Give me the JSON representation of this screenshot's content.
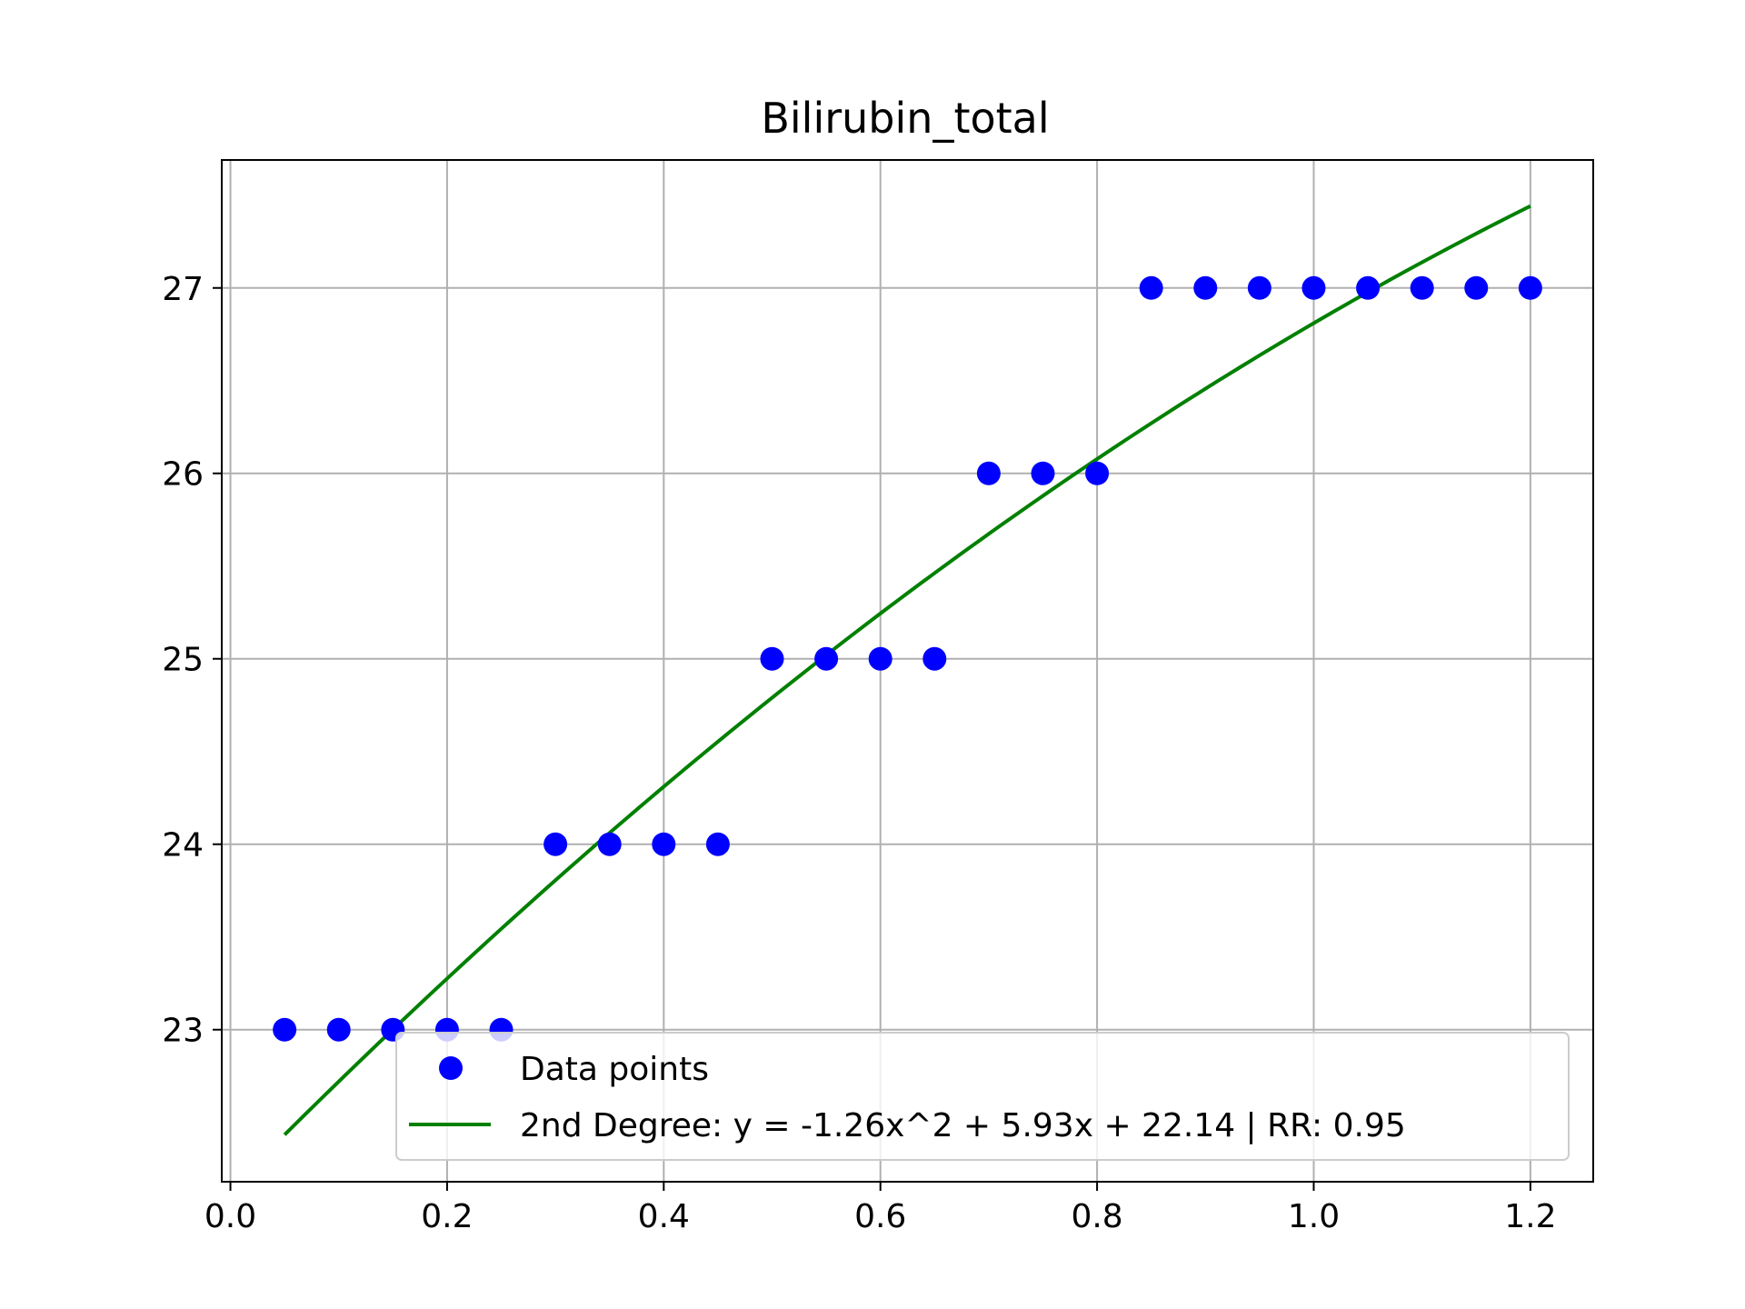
{
  "chart_data": {
    "type": "scatter",
    "title": "Bilirubin_total",
    "xlabel": "",
    "ylabel": "",
    "xlim": [
      -0.008,
      1.258
    ],
    "ylim": [
      22.18,
      27.69
    ],
    "x_ticks": [
      "0.0",
      "0.2",
      "0.4",
      "0.6",
      "0.8",
      "1.0",
      "1.2"
    ],
    "y_ticks": [
      "23",
      "24",
      "25",
      "26",
      "27"
    ],
    "grid": true,
    "legend_position": "lower-right",
    "series": [
      {
        "name": "Data points",
        "kind": "scatter",
        "color": "#0000ff",
        "x": [
          0.05,
          0.1,
          0.15,
          0.2,
          0.25,
          0.3,
          0.35,
          0.4,
          0.45,
          0.5,
          0.55,
          0.6,
          0.65,
          0.7,
          0.75,
          0.8,
          0.85,
          0.9,
          0.95,
          1.0,
          1.05,
          1.1,
          1.15,
          1.2
        ],
        "y": [
          23,
          23,
          23,
          23,
          23,
          24,
          24,
          24,
          24,
          25,
          25,
          25,
          25,
          26,
          26,
          26,
          27,
          27,
          27,
          27,
          27,
          27,
          27,
          27
        ]
      },
      {
        "name": "2nd Degree: y = -1.26x^2 + 5.93x + 22.14 | RR: 0.95",
        "kind": "line",
        "color": "#008000",
        "x_range": [
          0.05,
          1.2
        ],
        "coefficients": [
          -1.26,
          5.93,
          22.14
        ]
      }
    ]
  }
}
